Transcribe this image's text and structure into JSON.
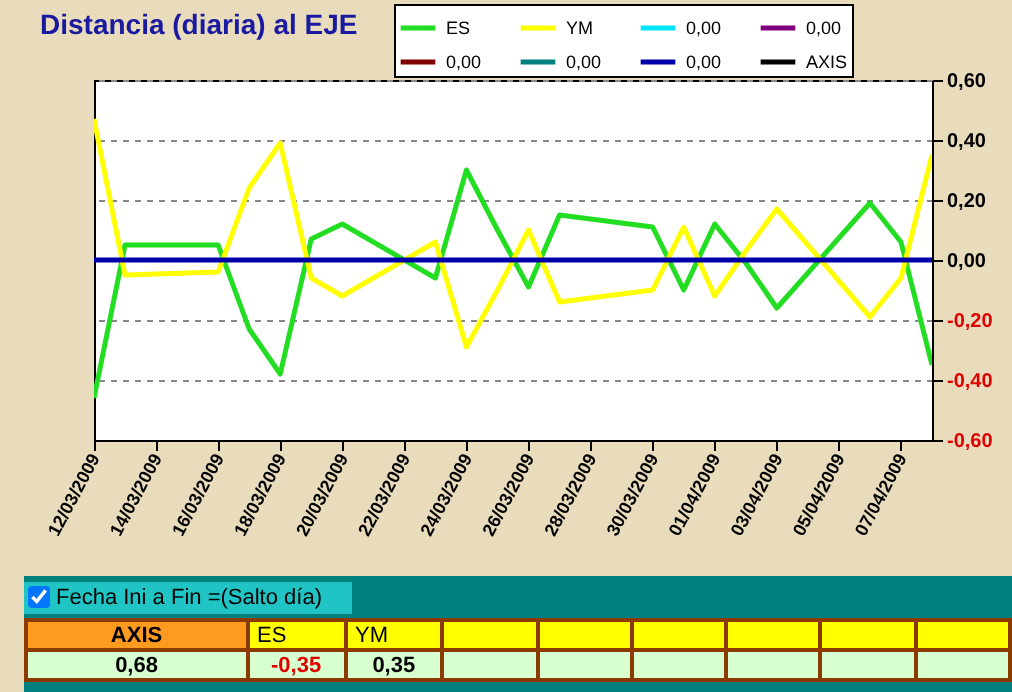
{
  "chart_data": {
    "type": "line",
    "title": "Distancia (diaria) al EJE",
    "x": [
      "2009-03-12",
      "2009-03-13",
      "2009-03-16",
      "2009-03-17",
      "2009-03-18",
      "2009-03-19",
      "2009-03-20",
      "2009-03-23",
      "2009-03-24",
      "2009-03-25",
      "2009-03-26",
      "2009-03-27",
      "2009-03-30",
      "2009-03-31",
      "2009-04-01",
      "2009-04-02",
      "2009-04-03",
      "2009-04-06",
      "2009-04-07",
      "2009-04-08"
    ],
    "series": [
      {
        "name": "ES",
        "color": "#22dd22",
        "values": [
          -0.46,
          0.05,
          0.05,
          -0.23,
          -0.38,
          0.07,
          0.12,
          -0.06,
          0.3,
          0.1,
          -0.09,
          0.15,
          0.11,
          -0.1,
          0.12,
          -0.01,
          -0.16,
          0.19,
          0.06,
          -0.35
        ]
      },
      {
        "name": "YM",
        "color": "#ffff00",
        "values": [
          0.47,
          -0.05,
          -0.04,
          0.24,
          0.39,
          -0.06,
          -0.12,
          0.06,
          -0.29,
          -0.1,
          0.1,
          -0.14,
          -0.1,
          0.11,
          -0.12,
          0.03,
          0.17,
          -0.19,
          -0.06,
          0.35
        ]
      },
      {
        "name": "0,00",
        "color": "#00e5ff",
        "values": [
          null,
          null,
          null,
          null,
          null,
          null,
          null,
          null,
          null,
          null,
          null,
          null,
          null,
          null,
          null,
          null,
          null,
          null,
          null,
          null
        ]
      },
      {
        "name": "0,00",
        "color": "#800080",
        "values": [
          null,
          null,
          null,
          null,
          null,
          null,
          null,
          null,
          null,
          null,
          null,
          null,
          null,
          null,
          null,
          null,
          null,
          null,
          null,
          null
        ]
      },
      {
        "name": "0,00",
        "color": "#800000",
        "values": [
          null,
          null,
          null,
          null,
          null,
          null,
          null,
          null,
          null,
          null,
          null,
          null,
          null,
          null,
          null,
          null,
          null,
          null,
          null,
          null
        ]
      },
      {
        "name": "0,00",
        "color": "#008080",
        "values": [
          null,
          null,
          null,
          null,
          null,
          null,
          null,
          null,
          null,
          null,
          null,
          null,
          null,
          null,
          null,
          null,
          null,
          null,
          null,
          null
        ]
      },
      {
        "name": "0,00",
        "color": "#0000a8",
        "values": [
          0,
          0,
          0,
          0,
          0,
          0,
          0,
          0,
          0,
          0,
          0,
          0,
          0,
          0,
          0,
          0,
          0,
          0,
          0,
          0
        ]
      },
      {
        "name": "AXIS",
        "color": "#000000",
        "values": [
          null,
          null,
          null,
          null,
          null,
          null,
          null,
          null,
          null,
          null,
          null,
          null,
          null,
          null,
          null,
          null,
          null,
          null,
          null,
          null
        ]
      }
    ],
    "xlim": [
      "2009-03-12",
      "2009-04-08"
    ],
    "xticks": [
      {
        "value": "2009-03-12",
        "label": "12/03/2009"
      },
      {
        "value": "2009-03-14",
        "label": "14/03/2009"
      },
      {
        "value": "2009-03-16",
        "label": "16/03/2009"
      },
      {
        "value": "2009-03-18",
        "label": "18/03/2009"
      },
      {
        "value": "2009-03-20",
        "label": "20/03/2009"
      },
      {
        "value": "2009-03-22",
        "label": "22/03/2009"
      },
      {
        "value": "2009-03-24",
        "label": "24/03/2009"
      },
      {
        "value": "2009-03-26",
        "label": "26/03/2009"
      },
      {
        "value": "2009-03-28",
        "label": "28/03/2009"
      },
      {
        "value": "2009-03-30",
        "label": "30/03/2009"
      },
      {
        "value": "2009-04-01",
        "label": "01/04/2009"
      },
      {
        "value": "2009-04-03",
        "label": "03/04/2009"
      },
      {
        "value": "2009-04-05",
        "label": "05/04/2009"
      },
      {
        "value": "2009-04-07",
        "label": "07/04/2009"
      }
    ],
    "ylim": [
      -0.6,
      0.6
    ],
    "yticks": [
      {
        "value": -0.6,
        "label": "-0,60"
      },
      {
        "value": -0.4,
        "label": "-0,40"
      },
      {
        "value": -0.2,
        "label": "-0,20"
      },
      {
        "value": 0,
        "label": "0,00"
      },
      {
        "value": 0.2,
        "label": "0,20"
      },
      {
        "value": 0.4,
        "label": "0,40"
      },
      {
        "value": 0.6,
        "label": "0,60"
      }
    ],
    "grid": "y",
    "legend": "top right",
    "line_style": "solid",
    "annotations": [
      "Fecha Ini a Fin =(Salto día)",
      "AXIS",
      "ES",
      "YM",
      "0,68",
      "-0,35",
      "0,35"
    ]
  }
}
